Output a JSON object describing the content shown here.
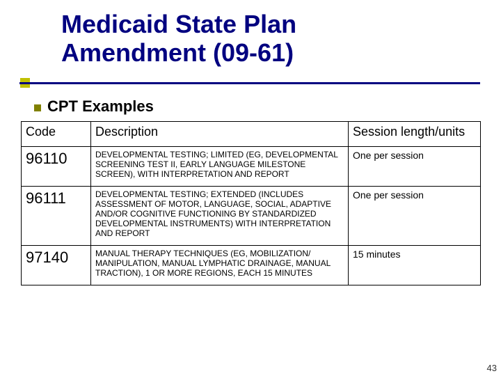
{
  "title_line1": "Medicaid State Plan",
  "title_line2": "Amendment (09-61)",
  "subheading": "CPT Examples",
  "table": {
    "headers": [
      "Code",
      "Description",
      "Session length/units"
    ],
    "rows": [
      {
        "code": "96110",
        "desc": "DEVELOPMENTAL TESTING; LIMITED (EG, DEVELOPMENTAL SCREENING TEST II, EARLY LANGUAGE MILESTONE SCREEN), WITH INTERPRETATION AND REPORT",
        "session": " One per session"
      },
      {
        "code": "96111",
        "desc": "DEVELOPMENTAL TESTING; EXTENDED (INCLUDES ASSESSMENT OF MOTOR, LANGUAGE, SOCIAL, ADAPTIVE AND/OR COGNITIVE FUNCTIONING BY STANDARDIZED DEVELOPMENTAL INSTRUMENTS) WITH INTERPRETATION AND REPORT",
        "session": "One per session"
      },
      {
        "code": "97140",
        "desc": "MANUAL THERAPY TECHNIQUES (EG, MOBILIZATION/ MANIPULATION, MANUAL LYMPHATIC DRAINAGE, MANUAL TRACTION), 1 OR MORE REGIONS, EACH 15 MINUTES",
        "session": "15 minutes"
      }
    ]
  },
  "page_number": "43",
  "colors": {
    "title_color": "#000080",
    "underline_color": "#000080",
    "bullet_color": "#c0c000",
    "sub_bullet_color": "#808000",
    "border_color": "#000000",
    "background": "#ffffff"
  },
  "fonts": {
    "title_size_pt": 36,
    "subheading_size_pt": 22,
    "header_size_pt": 18,
    "code_size_pt": 22,
    "desc_size_pt": 12,
    "session_size_pt": 14
  }
}
